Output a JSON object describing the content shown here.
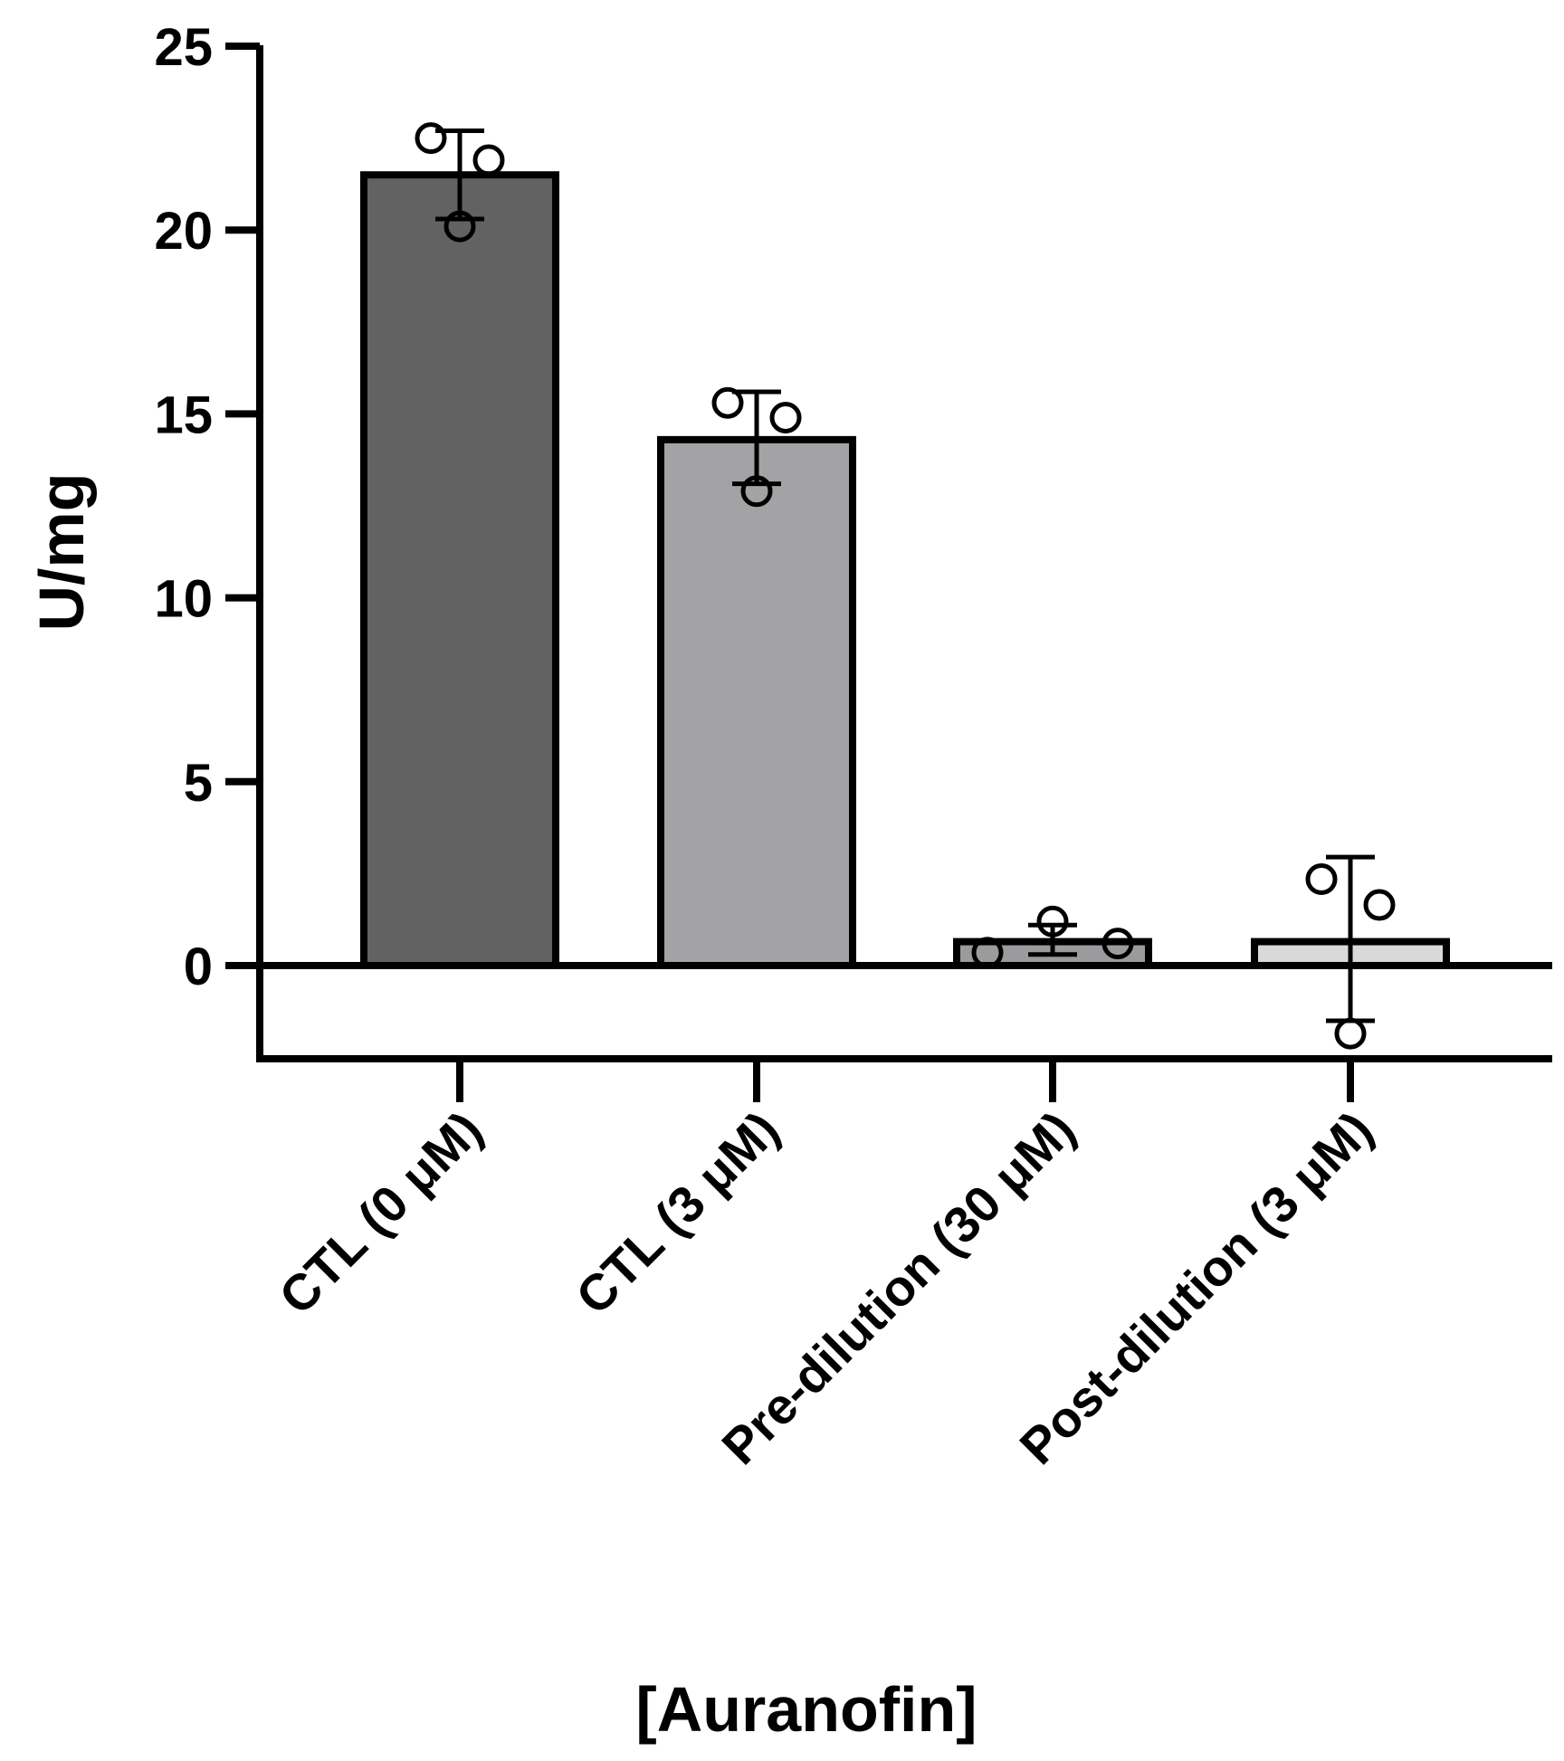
{
  "chart_data": {
    "type": "bar",
    "title": "",
    "xlabel": "[Auranofin]",
    "ylabel": "U/mg",
    "ylim": [
      -2.5,
      25
    ],
    "yticks": [
      0,
      5,
      10,
      15,
      20,
      25
    ],
    "grid": false,
    "categories": [
      "CTL (0 μM)",
      "CTL (3 μM)",
      "Pre-dilution (30 μM)",
      "Post-dilution (3 μM)"
    ],
    "values": [
      21.5,
      14.3,
      0.65,
      0.65
    ],
    "error": [
      {
        "low": 20.3,
        "high": 22.7
      },
      {
        "low": 13.1,
        "high": 15.6
      },
      {
        "low": 0.3,
        "high": 1.1
      },
      {
        "low": -1.5,
        "high": 2.95
      }
    ],
    "points": [
      [
        22.5,
        21.9,
        20.1
      ],
      [
        15.3,
        14.9,
        12.9
      ],
      [
        0.35,
        1.2,
        0.6
      ],
      [
        2.35,
        1.65,
        -1.85
      ]
    ],
    "colors": [
      "#626262",
      "#a3a3a6",
      "#9b9b9d",
      "#d9d9d9"
    ]
  }
}
